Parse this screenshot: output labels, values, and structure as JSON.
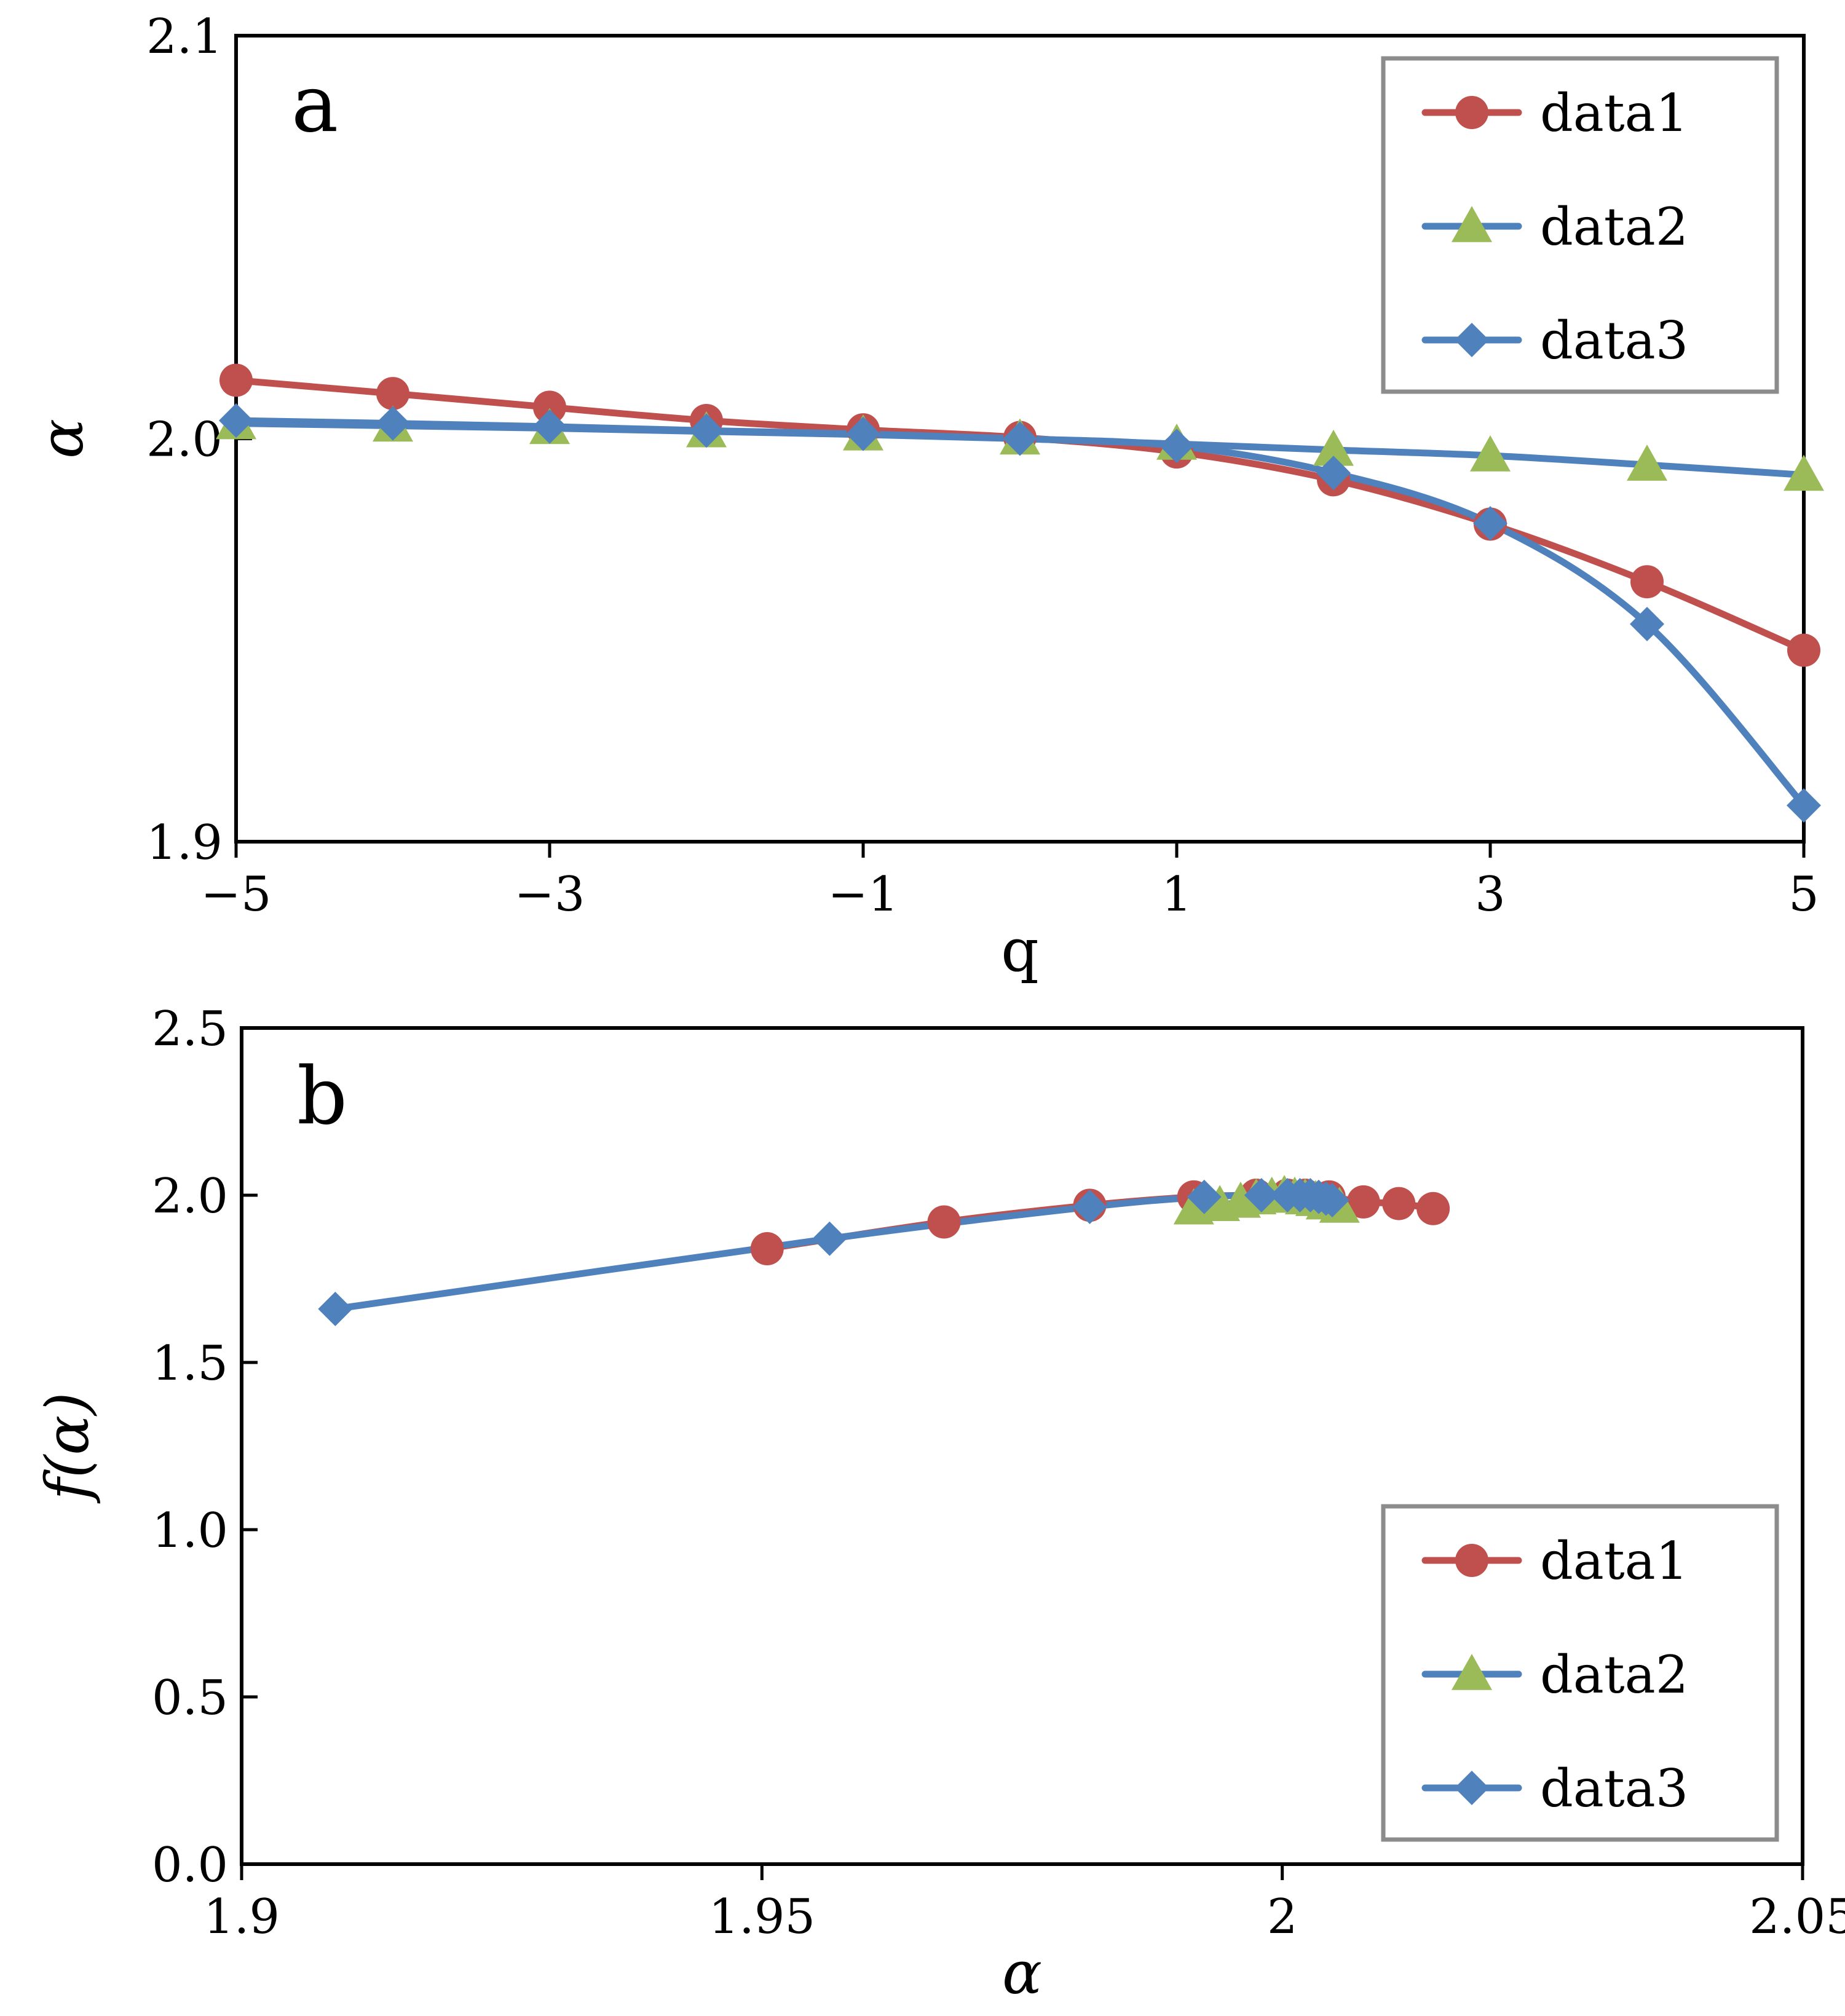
{
  "colors": {
    "data1": "#c0504d",
    "data2_line": "#4f81bd",
    "data2_marker": "#9bbb59",
    "data3": "#4f81bd",
    "axis": "#000000",
    "legend_border": "#8c8c8c"
  },
  "chart_data": [
    {
      "type": "line",
      "panel_label": "a",
      "xlabel": "q",
      "ylabel": "α",
      "xlim": [
        -5,
        5
      ],
      "ylim": [
        1.9,
        2.1
      ],
      "x_ticks": [
        -5,
        -3,
        -1,
        1,
        3,
        5
      ],
      "x_tick_labels": [
        "−5",
        "−3",
        "−1",
        "1",
        "3",
        "5"
      ],
      "y_ticks": [
        1.9,
        2.0,
        2.1
      ],
      "y_tick_labels": [
        "1.9",
        "2.0",
        "2.1"
      ],
      "legend_position": "top-right",
      "x": [
        -5,
        -4,
        -3,
        -2,
        -1,
        0,
        1,
        2,
        3,
        4,
        5
      ],
      "series": [
        {
          "name": "data1",
          "marker": "circle",
          "values": [
            2.0145,
            2.0112,
            2.0078,
            2.0045,
            2.0022,
            2.0003,
            1.9967,
            1.9898,
            1.9788,
            1.9645,
            1.9475
          ]
        },
        {
          "name": "data2",
          "marker": "triangle",
          "values": [
            2.0038,
            2.0032,
            2.0026,
            2.0018,
            2.001,
            2.0,
            1.9987,
            1.9972,
            1.9958,
            1.9935,
            1.991
          ]
        },
        {
          "name": "data3",
          "marker": "diamond",
          "values": [
            2.0045,
            2.0038,
            2.003,
            2.002,
            2.0012,
            2.0,
            1.9982,
            1.9915,
            1.979,
            1.954,
            1.909
          ]
        }
      ]
    },
    {
      "type": "line",
      "panel_label": "b",
      "xlabel": "α",
      "ylabel": "f(α)",
      "xlim": [
        1.9,
        2.05
      ],
      "ylim": [
        0.0,
        2.5
      ],
      "x_ticks": [
        1.9,
        1.95,
        2.0,
        2.05
      ],
      "x_tick_labels": [
        "1.9",
        "1.95",
        "2",
        "2.05"
      ],
      "y_ticks": [
        0.0,
        0.5,
        1.0,
        1.5,
        2.0,
        2.5
      ],
      "y_tick_labels": [
        "0.0",
        "0.5",
        "1.0",
        "1.5",
        "2.0",
        "2.5"
      ],
      "legend_position": "bottom-right",
      "series": [
        {
          "name": "data1",
          "marker": "circle",
          "x": [
            1.9505,
            1.9675,
            1.9815,
            1.9915,
            1.9975,
            2.0005,
            2.0022,
            2.0045,
            2.0078,
            2.0112,
            2.0145
          ],
          "y": [
            1.84,
            1.92,
            1.97,
            1.995,
            2.0,
            2.0,
            2.0,
            1.995,
            1.98,
            1.975,
            1.96
          ]
        },
        {
          "name": "data2",
          "marker": "triangle",
          "x": [
            1.9915,
            1.994,
            1.996,
            1.9975,
            1.999,
            2.0002,
            2.0012,
            2.0022,
            2.0032,
            2.0042,
            2.0055
          ],
          "y": [
            1.96,
            1.97,
            1.98,
            1.99,
            1.995,
            2.0,
            1.995,
            1.99,
            1.985,
            1.975,
            1.965
          ]
        },
        {
          "name": "data3",
          "marker": "diamond",
          "x": [
            1.909,
            1.9565,
            1.9815,
            1.9925,
            1.998,
            2.0005,
            2.0017,
            2.0027,
            2.0035,
            2.0042,
            2.0048
          ],
          "y": [
            1.66,
            1.87,
            1.965,
            1.995,
            2.0,
            2.0,
            2.0,
            2.0,
            1.995,
            1.99,
            1.985
          ]
        }
      ]
    }
  ]
}
